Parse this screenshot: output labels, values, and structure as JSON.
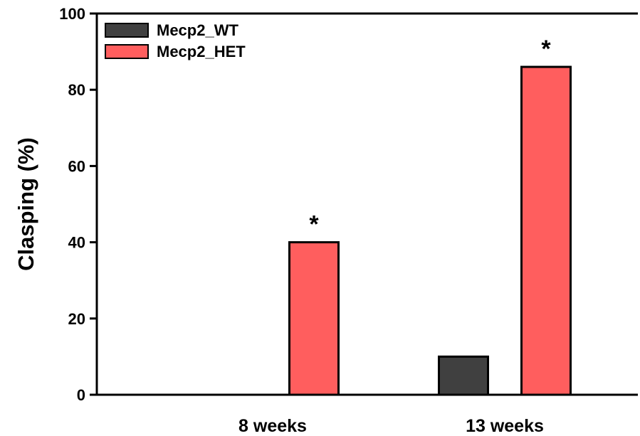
{
  "chart_data": {
    "type": "bar",
    "title": "",
    "xlabel": "",
    "ylabel": "Clasping (%)",
    "ylim": [
      0,
      100
    ],
    "yticks": [
      0,
      20,
      40,
      60,
      80,
      100
    ],
    "categories": [
      "8 weeks",
      "13 weeks"
    ],
    "series": [
      {
        "name": "Mecp2_WT",
        "values": [
          0,
          10
        ],
        "color": "#404040"
      },
      {
        "name": "Mecp2_HET",
        "values": [
          40,
          86
        ],
        "color": "#FF5E5E"
      }
    ],
    "annotations": [
      {
        "text": "*",
        "category": "8 weeks",
        "series": "Mecp2_HET"
      },
      {
        "text": "*",
        "category": "13 weeks",
        "series": "Mecp2_HET"
      }
    ],
    "legend": "top-left",
    "grid": false
  }
}
